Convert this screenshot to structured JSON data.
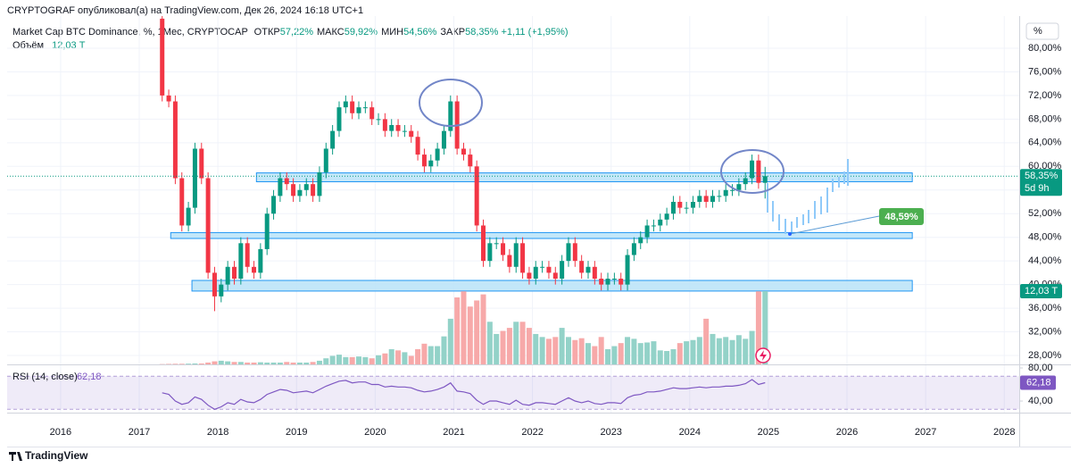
{
  "header": "CRYPTOGRAF опубликовал(а) на TradingView.com, Дек 26, 2024 16:18 UTC+1",
  "footer": "TradingView",
  "chart_data": {
    "type": "candlestick",
    "title": "Market Cap BTC Dominance, %, 1Мес, CRYPTOCAP",
    "ohlc_legend": [
      {
        "label": "ОТКР",
        "value": "57,22%"
      },
      {
        "label": "МАКС",
        "value": "59,92%"
      },
      {
        "label": "МИН",
        "value": "54,56%"
      },
      {
        "label": "ЗАКР",
        "value": "58,35%"
      }
    ],
    "change": "+1,11 (+1,95%)",
    "volume_label": "Объём",
    "volume_value": "12,03 T",
    "x": [
      "2017-04",
      "2017-05",
      "2017-06",
      "2017-07",
      "2017-08",
      "2017-09",
      "2017-10",
      "2017-11",
      "2017-12",
      "2018-01",
      "2018-02",
      "2018-03",
      "2018-04",
      "2018-05",
      "2018-06",
      "2018-07",
      "2018-08",
      "2018-09",
      "2018-10",
      "2018-11",
      "2018-12",
      "2019-01",
      "2019-02",
      "2019-03",
      "2019-04",
      "2019-05",
      "2019-06",
      "2019-07",
      "2019-08",
      "2019-09",
      "2019-10",
      "2019-11",
      "2019-12",
      "2020-01",
      "2020-02",
      "2020-03",
      "2020-04",
      "2020-05",
      "2020-06",
      "2020-07",
      "2020-08",
      "2020-09",
      "2020-10",
      "2020-11",
      "2020-12",
      "2021-01",
      "2021-02",
      "2021-03",
      "2021-04",
      "2021-05",
      "2021-06",
      "2021-07",
      "2021-08",
      "2021-09",
      "2021-10",
      "2021-11",
      "2021-12",
      "2022-01",
      "2022-02",
      "2022-03",
      "2022-04",
      "2022-05",
      "2022-06",
      "2022-07",
      "2022-08",
      "2022-09",
      "2022-10",
      "2022-11",
      "2022-12",
      "2023-01",
      "2023-02",
      "2023-03",
      "2023-04",
      "2023-05",
      "2023-06",
      "2023-07",
      "2023-08",
      "2023-09",
      "2023-10",
      "2023-11",
      "2023-12",
      "2024-01",
      "2024-02",
      "2024-03",
      "2024-04",
      "2024-05",
      "2024-06",
      "2024-07",
      "2024-08",
      "2024-09",
      "2024-10",
      "2024-11",
      "2024-12"
    ],
    "open": [
      85,
      72,
      71,
      58,
      50,
      53,
      63,
      58,
      42,
      38,
      40,
      43,
      41,
      47,
      43,
      42,
      46,
      52,
      55,
      58,
      57,
      55,
      56,
      57,
      55,
      59,
      63,
      66,
      70,
      71,
      69,
      70,
      70,
      68,
      68,
      66,
      67,
      66,
      66,
      65,
      62,
      60,
      61,
      63,
      66,
      71,
      63,
      62,
      60,
      50,
      44,
      47,
      47,
      45,
      43,
      47,
      42,
      41,
      43,
      43,
      42,
      41,
      44,
      47,
      44,
      42,
      43,
      41,
      40,
      41,
      41,
      40,
      45,
      47,
      48,
      50,
      50,
      51,
      52,
      54,
      53,
      53,
      54,
      55,
      54,
      55,
      55,
      56,
      56,
      57,
      58,
      61,
      57.22
    ],
    "high": [
      86,
      73,
      72,
      59,
      54,
      64,
      64,
      59,
      43,
      41,
      44,
      44,
      48,
      48,
      44,
      47,
      53,
      56,
      59,
      59,
      58,
      57,
      58,
      58,
      60,
      64,
      67,
      71,
      72,
      72,
      71,
      71,
      71,
      69,
      69,
      68,
      68,
      67,
      67,
      66,
      63,
      62,
      64,
      67,
      72,
      72,
      64,
      63,
      61,
      51,
      48,
      48,
      48,
      46,
      48,
      48,
      43,
      44,
      44,
      44,
      43,
      45,
      48,
      48,
      45,
      44,
      44,
      42,
      42,
      42,
      42,
      46,
      48,
      49,
      51,
      51,
      52,
      53,
      55,
      55,
      54,
      55,
      56,
      56,
      56,
      56,
      57,
      57,
      58,
      59,
      62,
      62,
      59.92
    ],
    "low": [
      71,
      70,
      57,
      49,
      49,
      52,
      57,
      41,
      35.5,
      37,
      39,
      40,
      40,
      42,
      41,
      41,
      45,
      51,
      54,
      56,
      54,
      54,
      55,
      54,
      54,
      58,
      62,
      65,
      69,
      68,
      68,
      69,
      67,
      67,
      65,
      65,
      65,
      65,
      64,
      61,
      59,
      59,
      60,
      62,
      65,
      62,
      61,
      59,
      49,
      43,
      43,
      46,
      44,
      42,
      42,
      41,
      40,
      40,
      42,
      41,
      40,
      40,
      43,
      43,
      41,
      41,
      40,
      39,
      39,
      40,
      39,
      39,
      44,
      46,
      47,
      49,
      49,
      50,
      51,
      52,
      52,
      52,
      53,
      53,
      53,
      54,
      54,
      55,
      55,
      56,
      57,
      56.22,
      54.56
    ],
    "close": [
      72,
      71,
      58,
      50,
      53,
      63,
      58,
      42,
      38,
      40,
      43,
      41,
      47,
      43,
      42,
      46,
      52,
      55,
      58,
      57,
      55,
      56,
      57,
      55,
      59,
      63,
      66,
      70,
      71,
      69,
      70,
      70,
      68,
      68,
      66,
      67,
      66,
      66,
      65,
      62,
      60,
      61,
      63,
      66,
      71,
      63,
      62,
      60,
      50,
      44,
      47,
      47,
      45,
      43,
      47,
      42,
      41,
      43,
      43,
      42,
      41,
      44,
      47,
      44,
      42,
      43,
      41,
      40,
      41,
      41,
      40,
      45,
      47,
      48,
      50,
      50,
      51,
      52,
      54,
      53,
      53,
      54,
      55,
      54,
      55,
      55,
      56,
      56,
      57,
      58,
      61,
      57.22,
      58.35
    ],
    "volume": [
      0.05,
      0.08,
      0.1,
      0.1,
      0.12,
      0.15,
      0.15,
      0.3,
      0.5,
      0.6,
      0.5,
      0.4,
      0.4,
      0.3,
      0.3,
      0.35,
      0.3,
      0.3,
      0.3,
      0.4,
      0.3,
      0.3,
      0.3,
      0.4,
      0.6,
      1.0,
      1.4,
      1.6,
      1.2,
      1.2,
      1.3,
      1.2,
      1.0,
      1.5,
      1.8,
      2.5,
      2.3,
      2.0,
      1.4,
      2.5,
      3.4,
      3.0,
      3.0,
      4.6,
      7.5,
      11.0,
      12.0,
      9.5,
      10.5,
      11.5,
      7.0,
      5.0,
      5.5,
      6.0,
      7.0,
      7.0,
      6.0,
      5.0,
      4.5,
      4.2,
      4.5,
      6.0,
      4.5,
      4.0,
      4.3,
      3.5,
      3.0,
      4.5,
      2.5,
      3.0,
      3.5,
      4.5,
      4.2,
      3.5,
      3.6,
      3.8,
      2.3,
      2.2,
      2.5,
      3.5,
      3.8,
      4.0,
      4.5,
      7.5,
      5.0,
      4.3,
      4.5,
      4.0,
      4.8,
      4.2,
      5.5,
      12.0,
      12.03
    ],
    "colors": {
      "up": "#089981",
      "down": "#f23645",
      "volume_up": "#93d2c8",
      "volume_down": "#f7a9a9",
      "zone_fill": "#bde4f8",
      "zone_stroke": "#2196f3"
    },
    "xlim": [
      2015.32,
      2028.19
    ],
    "xticks": [
      2016,
      2017,
      2018,
      2019,
      2020,
      2021,
      2022,
      2023,
      2024,
      2025,
      2026,
      2027,
      2028
    ],
    "ylim": [
      26.49,
      85.44
    ],
    "yticks": [
      {
        "value": 80,
        "label": "80,00%"
      },
      {
        "value": 76,
        "label": "76,00%"
      },
      {
        "value": 72,
        "label": "72,00%"
      },
      {
        "value": 68,
        "label": "68,00%"
      },
      {
        "value": 64,
        "label": "64,00%"
      },
      {
        "value": 60,
        "label": "60,00%"
      },
      {
        "value": 56,
        "label": "56,00%"
      },
      {
        "value": 52,
        "label": "52,00%"
      },
      {
        "value": 48,
        "label": "48,00%"
      },
      {
        "value": 44,
        "label": "44,00%"
      },
      {
        "value": 40,
        "label": "40,00%"
      },
      {
        "value": 36,
        "label": "36,00%"
      },
      {
        "value": 32,
        "label": "32,00%"
      },
      {
        "value": 28,
        "label": "28,00%"
      }
    ],
    "grid": true,
    "axis_unit": "%",
    "last_price_label": "58,35%",
    "countdown": "5d 9h",
    "last_volume_label": "12,03 T",
    "zones": [
      {
        "from": 57.4,
        "to": 58.9,
        "x0": 2018.49,
        "x1": 2026.83
      },
      {
        "from": 47.8,
        "to": 48.8,
        "x0": 2017.4,
        "x1": 2026.83
      },
      {
        "from": 38.9,
        "to": 40.7,
        "x0": 2017.67,
        "x1": 2026.83
      }
    ],
    "annotations": [
      {
        "label": "48,59%"
      }
    ],
    "rsi": {
      "title": "RSI (14, close)",
      "value_label": "62,18",
      "color": "#7e57c2",
      "values": [
        50,
        48,
        40,
        36,
        38,
        45,
        42,
        35,
        30,
        33,
        38,
        36,
        42,
        39,
        38,
        42,
        48,
        51,
        54,
        53,
        50,
        51,
        52,
        50,
        54,
        58,
        61,
        64,
        65,
        62,
        63,
        63,
        60,
        60,
        57,
        58,
        57,
        57,
        56,
        53,
        51,
        52,
        54,
        57,
        62,
        52,
        51,
        49,
        41,
        36,
        40,
        40,
        38,
        36,
        41,
        36,
        35,
        38,
        38,
        37,
        36,
        40,
        44,
        40,
        38,
        40,
        37,
        36,
        38,
        38,
        37,
        44,
        47,
        48,
        51,
        51,
        52,
        54,
        56,
        55,
        55,
        56,
        57,
        56,
        57,
        57,
        58,
        58,
        59,
        61,
        66,
        60,
        62.18
      ],
      "ylim": [
        26,
        84.3
      ],
      "yticks": [
        {
          "value": 80,
          "label": "80,00"
        },
        {
          "value": 40,
          "label": "40,00"
        }
      ],
      "band": [
        30,
        70
      ]
    }
  }
}
